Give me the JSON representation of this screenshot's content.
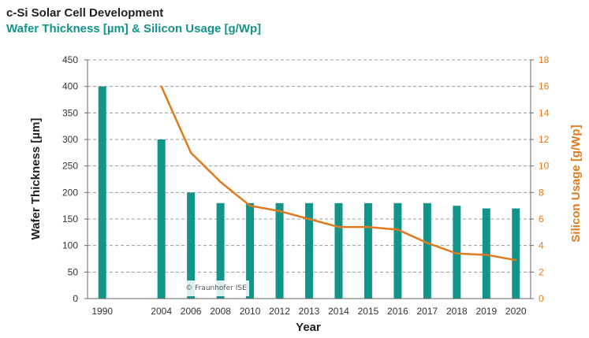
{
  "header": {
    "title": "c-Si Solar Cell Development",
    "subtitle": "Wafer Thickness [µm] & Silicon Usage  [g/Wp]"
  },
  "watermark": "© Fraunhofer ISE",
  "colors": {
    "bar": "#12948a",
    "line": "#e07a1f",
    "grid": "#9a9a9a",
    "text": "#222222"
  },
  "chart_data": {
    "type": "bar",
    "title": "c-Si Solar Cell Development",
    "subtitle": "Wafer Thickness [µm] & Silicon Usage  [g/Wp]",
    "xlabel": "Year",
    "ylabel": "Wafer Thickness [µm]",
    "y2label": "Silicon Usage [g/Wp]",
    "categories": [
      "1990",
      "",
      "2004",
      "2006",
      "2008",
      "2010",
      "2012",
      "2013",
      "2014",
      "2015",
      "2016",
      "2017",
      "2018",
      "2019",
      "2020"
    ],
    "ylim": [
      0,
      450
    ],
    "yticks": [
      0,
      50,
      100,
      150,
      200,
      250,
      300,
      350,
      400,
      450
    ],
    "y2lim": [
      0,
      18
    ],
    "y2ticks": [
      0,
      2,
      4,
      6,
      8,
      10,
      12,
      14,
      16,
      18
    ],
    "grid": true,
    "series": [
      {
        "name": "Wafer Thickness [µm]",
        "type": "bar",
        "axis": "left",
        "values": [
          400,
          null,
          300,
          200,
          180,
          180,
          180,
          180,
          180,
          180,
          180,
          180,
          175,
          170,
          170
        ]
      },
      {
        "name": "Silicon Usage [g/Wp]",
        "type": "line",
        "axis": "right",
        "values": [
          null,
          null,
          16,
          11,
          8.8,
          7,
          6.6,
          6,
          5.4,
          5.4,
          5.2,
          4.2,
          3.4,
          3.3,
          2.9
        ]
      }
    ]
  }
}
